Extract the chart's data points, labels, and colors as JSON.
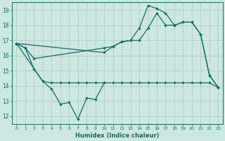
{
  "background_color": "#cce8e0",
  "grid_color": "#aaccc4",
  "line_color": "#1a6b60",
  "xlabel": "Humidex (Indice chaleur)",
  "xlim_min": -0.5,
  "xlim_max": 23.5,
  "ylim_min": 11.5,
  "ylim_max": 19.5,
  "yticks": [
    12,
    13,
    14,
    15,
    16,
    17,
    18,
    19
  ],
  "xticks": [
    0,
    1,
    2,
    3,
    4,
    5,
    6,
    7,
    8,
    9,
    10,
    11,
    12,
    13,
    14,
    15,
    16,
    17,
    18,
    19,
    20,
    21,
    22,
    23
  ],
  "series1_x": [
    0,
    1,
    2,
    3,
    4,
    5,
    6,
    7,
    8,
    9,
    10
  ],
  "series1_y": [
    16.8,
    16.5,
    15.1,
    14.3,
    13.8,
    12.8,
    12.9,
    11.8,
    13.2,
    13.1,
    14.2
  ],
  "series2_x": [
    0,
    3,
    4,
    5,
    6,
    7,
    8,
    9,
    10,
    11,
    12,
    13,
    14,
    15,
    16,
    17,
    18,
    19,
    20,
    21,
    22,
    23
  ],
  "series2_y": [
    16.8,
    14.3,
    14.2,
    14.2,
    14.2,
    14.2,
    14.2,
    14.2,
    14.2,
    14.2,
    14.2,
    14.2,
    14.2,
    14.2,
    14.2,
    14.2,
    14.2,
    14.2,
    14.2,
    14.2,
    14.2,
    13.9
  ],
  "series3_x": [
    0,
    1,
    2,
    10,
    11,
    12,
    13,
    14,
    15,
    16,
    17,
    18,
    19,
    20,
    21,
    22,
    23
  ],
  "series3_y": [
    16.8,
    16.5,
    15.8,
    16.5,
    16.6,
    16.9,
    17.0,
    17.8,
    19.3,
    19.1,
    18.8,
    18.0,
    18.2,
    18.2,
    17.4,
    14.7,
    13.9
  ],
  "series4_x": [
    0,
    10,
    11,
    12,
    13,
    14,
    15,
    16,
    17,
    18,
    19,
    20,
    21,
    22,
    23
  ],
  "series4_y": [
    16.8,
    16.2,
    16.6,
    16.9,
    17.0,
    17.0,
    17.8,
    18.8,
    18.0,
    18.0,
    18.2,
    18.2,
    17.4,
    14.7,
    13.9
  ]
}
